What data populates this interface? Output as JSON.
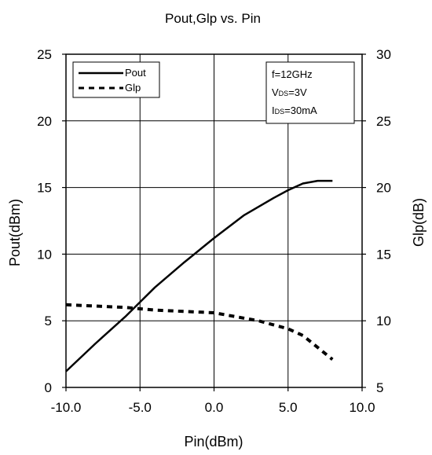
{
  "chart_data": {
    "type": "line",
    "title": "Pout,Glp vs. Pin",
    "xlabel": "Pin(dBm)",
    "ylabel": "Pout(dBm)",
    "y2label": "Glp(dB)",
    "xlim": [
      -10,
      10
    ],
    "ylim": [
      0,
      25
    ],
    "y2lim": [
      5,
      30
    ],
    "x_ticks": [
      "-10.0",
      "-5.0",
      "0.0",
      "5.0",
      "10.0"
    ],
    "y_ticks": [
      "0",
      "5",
      "10",
      "15",
      "20",
      "25"
    ],
    "y2_ticks": [
      "5",
      "10",
      "15",
      "20",
      "25",
      "30"
    ],
    "grid": true,
    "legend_position": "top-left",
    "series": [
      {
        "name": "Pout",
        "axis": "left",
        "style": "solid",
        "color": "#000000",
        "x": [
          -10,
          -8,
          -6,
          -4,
          -2,
          0,
          2,
          4,
          5,
          6,
          7,
          8
        ],
        "y": [
          1.2,
          3.3,
          5.3,
          7.5,
          9.4,
          11.2,
          12.9,
          14.2,
          14.8,
          15.3,
          15.5,
          15.5
        ]
      },
      {
        "name": "Glp",
        "axis": "right",
        "style": "dashed",
        "color": "#000000",
        "x": [
          -10,
          -8,
          -6,
          -4,
          -2,
          0,
          2,
          3,
          4,
          5,
          6,
          7,
          8
        ],
        "y": [
          11.2,
          11.1,
          11,
          10.8,
          10.7,
          10.6,
          10.2,
          10,
          9.7,
          9.4,
          8.9,
          8,
          7.1
        ]
      }
    ],
    "conditions": [
      {
        "main": "f=12GHz",
        "sub": "",
        "rest": ""
      },
      {
        "main": "V",
        "sub": "DS",
        "rest": "=3V"
      },
      {
        "main": "I",
        "sub": "DS",
        "rest": "=30mA"
      }
    ]
  }
}
